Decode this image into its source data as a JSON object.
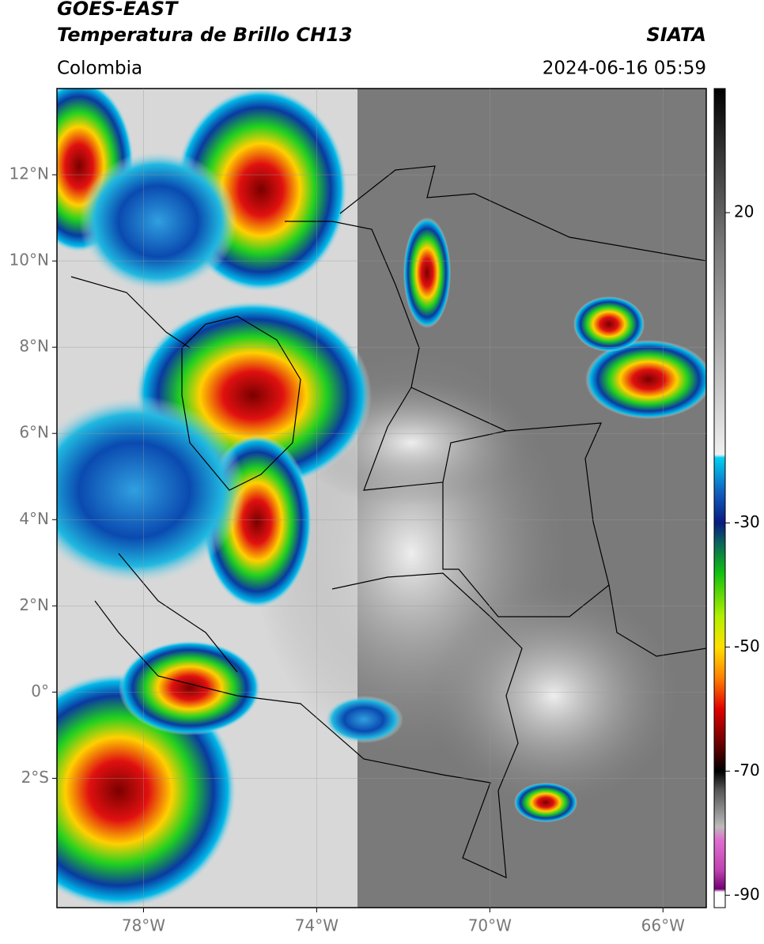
{
  "header": {
    "title_line1": "GOES-EAST",
    "title_line2": "Temperatura de Brillo CH13",
    "region": "Colombia",
    "source": "SIATA",
    "datetime": "2024-06-16 05:59"
  },
  "map": {
    "xlim": [
      -80,
      -65
    ],
    "ylim": [
      -5,
      14
    ],
    "grid": true,
    "xticks": [
      {
        "value": -78,
        "label": "78°W"
      },
      {
        "value": -74,
        "label": "74°W"
      },
      {
        "value": -70,
        "label": "70°W"
      },
      {
        "value": -66,
        "label": "66°W"
      }
    ],
    "yticks": [
      {
        "value": 12,
        "label": "12°N"
      },
      {
        "value": 10,
        "label": "10°N"
      },
      {
        "value": 8,
        "label": "8°N"
      },
      {
        "value": 6,
        "label": "6°N"
      },
      {
        "value": 4,
        "label": "4°N"
      },
      {
        "value": 2,
        "label": "2°N"
      },
      {
        "value": 0,
        "label": "0°"
      },
      {
        "value": -2,
        "label": "2°S"
      }
    ]
  },
  "colorbar": {
    "lim": [
      -92,
      40
    ],
    "ticks": [
      20,
      -30,
      -50,
      -70,
      -90
    ]
  }
}
